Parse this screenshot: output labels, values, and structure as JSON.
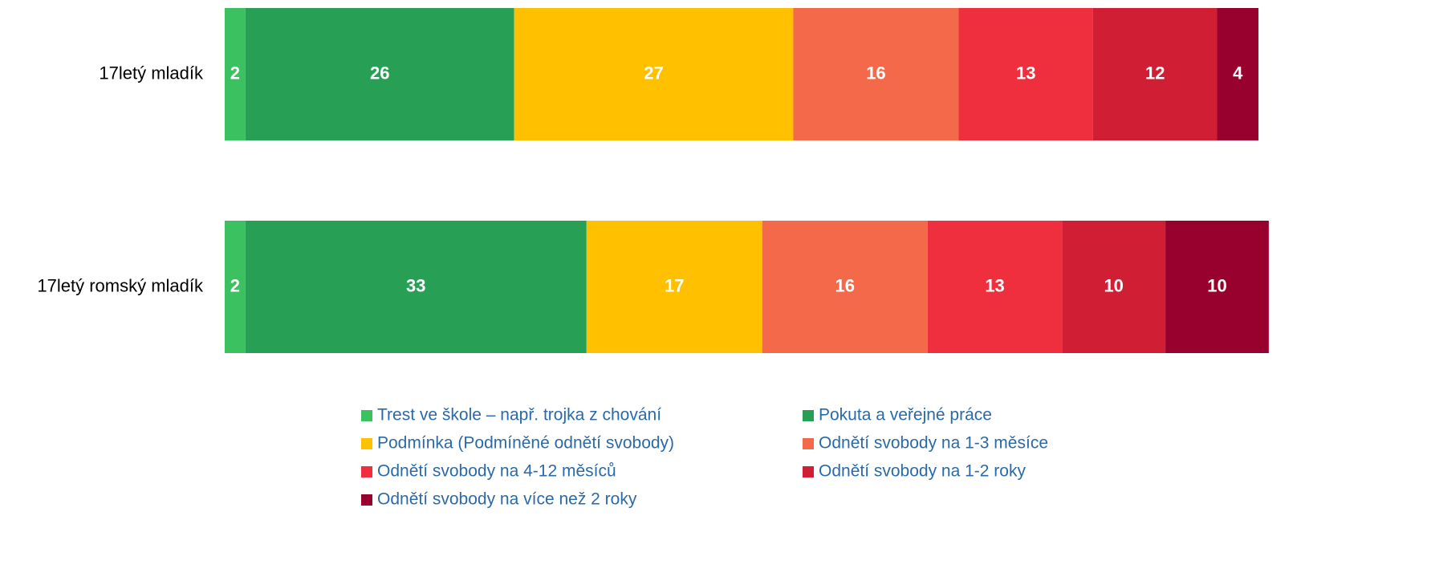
{
  "chart_data": {
    "type": "stacked-bar-horizontal",
    "categories": [
      "17letý mladík",
      "17letý romský mladík"
    ],
    "series": [
      {
        "name": "Trest ve škole – např. trojka z chování",
        "color": "#3cc160",
        "values": [
          2,
          2
        ]
      },
      {
        "name": "Pokuta a veřejné práce",
        "color": "#27a055",
        "values": [
          26,
          33
        ]
      },
      {
        "name": "Podmínka (Podmíněné odnětí svobody)",
        "color": "#ffc000",
        "values": [
          27,
          17
        ]
      },
      {
        "name": "Odnětí svobody na 1-3 měsíce",
        "color": "#f4694a",
        "values": [
          16,
          16
        ]
      },
      {
        "name": "Odnětí svobody na 4-12 měsíců",
        "color": "#ef2f3e",
        "values": [
          13,
          13
        ]
      },
      {
        "name": "Odnětí svobody na 1-2 roky",
        "color": "#d01f35",
        "values": [
          12,
          10
        ]
      },
      {
        "name": "Odnětí svobody na více než 2 roky",
        "color": "#98002e",
        "values": [
          4,
          10
        ]
      }
    ],
    "xlim": [
      0,
      100
    ]
  }
}
